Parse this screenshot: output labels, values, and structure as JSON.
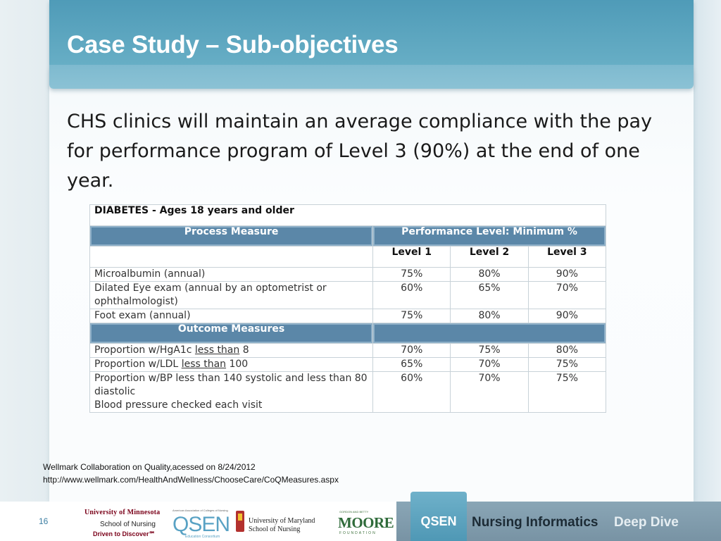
{
  "title": "Case Study – Sub-objectives",
  "body_text": "CHS clinics will maintain an average compliance with the pay for performance program of Level 3 (90%) at the end of one year.",
  "table": {
    "title": "DIABETES - Ages 18 years and older",
    "process_header": "Process Measure",
    "performance_header": "Performance Level: Minimum %",
    "levels": [
      "Level 1",
      "Level 2",
      "Level 3"
    ],
    "process_rows": [
      {
        "measure": "Microalbumin (annual)",
        "values": [
          "75%",
          "80%",
          "90%"
        ]
      },
      {
        "measure": "Dilated Eye exam (annual by an optometrist or ophthalmologist)",
        "values": [
          "60%",
          "65%",
          "70%"
        ]
      },
      {
        "measure": "Foot exam (annual)",
        "values": [
          "75%",
          "80%",
          "90%"
        ]
      }
    ],
    "outcome_header": "Outcome Measures",
    "outcome_rows": [
      {
        "prefix": "Proportion w/HgA1c ",
        "underlined": "less than",
        "suffix": " 8",
        "values": [
          "70%",
          "75%",
          "80%"
        ]
      },
      {
        "prefix": "Proportion w/LDL ",
        "underlined": "less than",
        "suffix": " 100",
        "values": [
          "65%",
          "70%",
          "75%"
        ]
      },
      {
        "line1": "Proportion w/BP less than 140 systolic and less than 80 diastolic",
        "line2": "Blood pressure checked each visit",
        "values": [
          "60%",
          "70%",
          "75%"
        ]
      }
    ]
  },
  "citation": {
    "line1": "Wellmark Collaboration on Quality,acessed on 8/24/2012",
    "line2": "http://www.wellmark.com/HealthAndWellness/ChooseCare/CoQMeasures.aspx"
  },
  "footer": {
    "page_number": "16",
    "umn_line1": "University of Minnesota",
    "umn_line2": "School of Nursing",
    "umn_line3": "Driven to Discover℠",
    "qsen_logo_top": "American Association of Colleges of Nursing",
    "qsen_logo_text": "QSEN",
    "qsen_logo_sub": "Education Consortium",
    "umd_line1": "University of Maryland",
    "umd_line2": "School of Nursing",
    "moore_top": "GORDON AND BETTY",
    "moore_text": "MOORE",
    "moore_sub": "FOUNDATION",
    "qsen_tab": "QSEN",
    "nursing_informatics": "Nursing Informatics",
    "deep_dive": "Deep Dive"
  },
  "colors": {
    "title_bar": "#5fa6c0",
    "table_header": "#5b87a8",
    "footer_band": "#8aa6b6",
    "qsen_tab": "#5fa6c0"
  }
}
